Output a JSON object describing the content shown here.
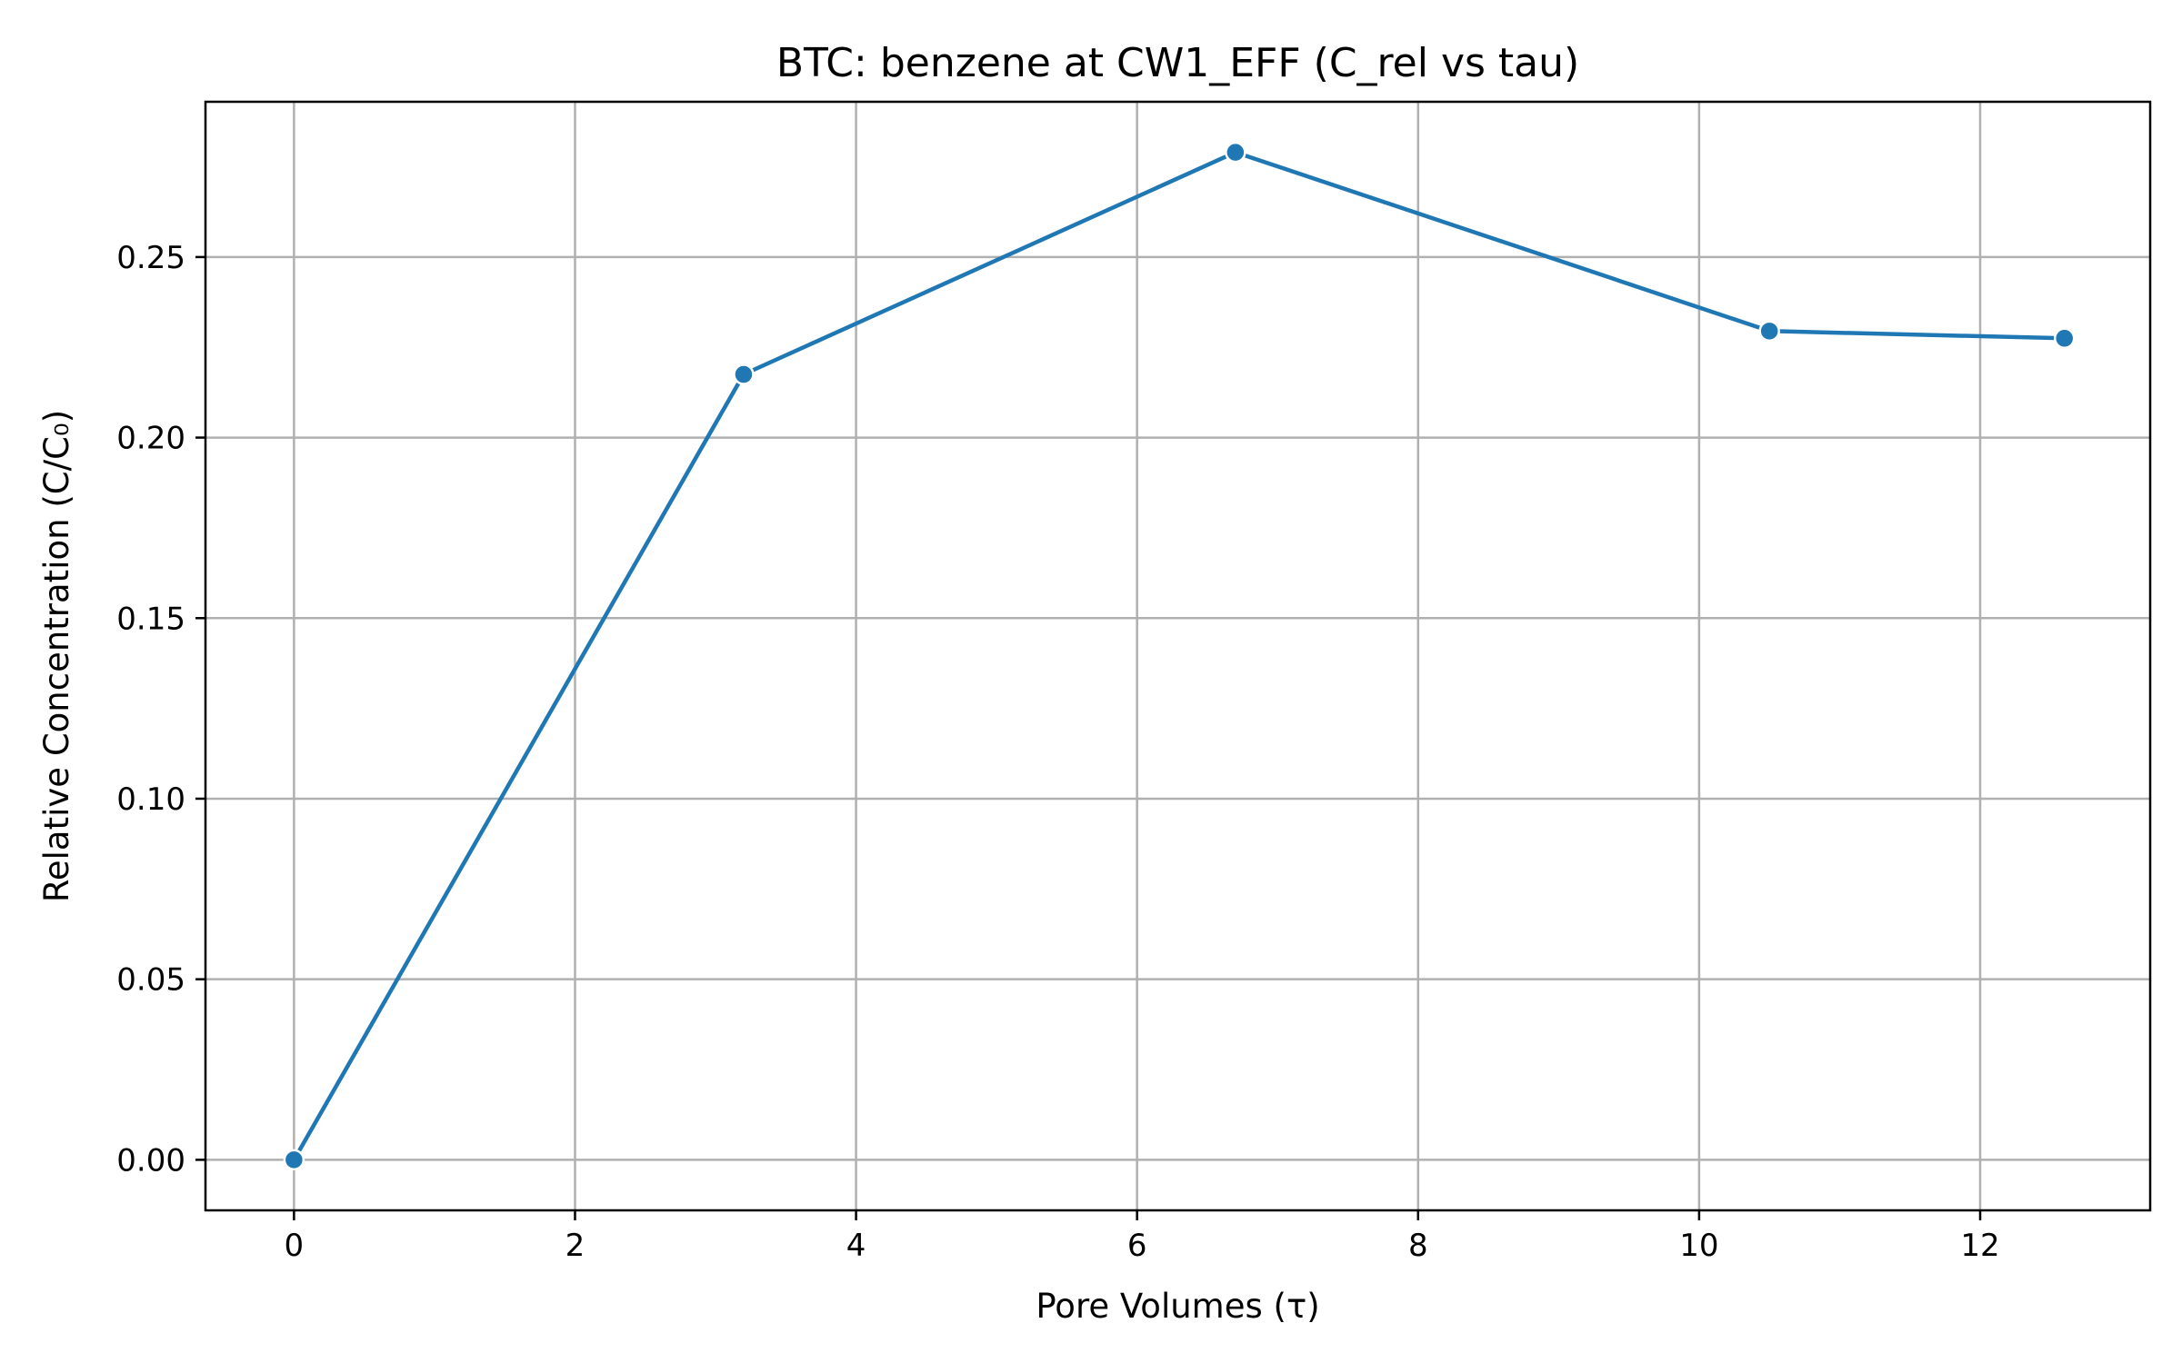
{
  "chart_data": {
    "type": "line",
    "title": "BTC: benzene at CW1_EFF (C_rel vs tau)",
    "xlabel": "Pore Volumes (τ)",
    "ylabel": "Relative Concentration (C/C₀)",
    "xlim": [
      -0.63,
      13.21
    ],
    "ylim": [
      -0.014,
      0.293
    ],
    "xticks": [
      0,
      2,
      4,
      6,
      8,
      10,
      12
    ],
    "xtick_labels": [
      "0",
      "2",
      "4",
      "6",
      "8",
      "10",
      "12"
    ],
    "yticks": [
      0.0,
      0.05,
      0.1,
      0.15,
      0.2,
      0.25
    ],
    "ytick_labels": [
      "0.00",
      "0.05",
      "0.10",
      "0.15",
      "0.20",
      "0.25"
    ],
    "grid": true,
    "series": [
      {
        "x": [
          0.0,
          3.2,
          6.7,
          10.5,
          12.6
        ],
        "y": [
          0.0,
          0.2175,
          0.279,
          0.2295,
          0.2275
        ],
        "color": "#1f77b4",
        "marker": "circle"
      }
    ]
  }
}
